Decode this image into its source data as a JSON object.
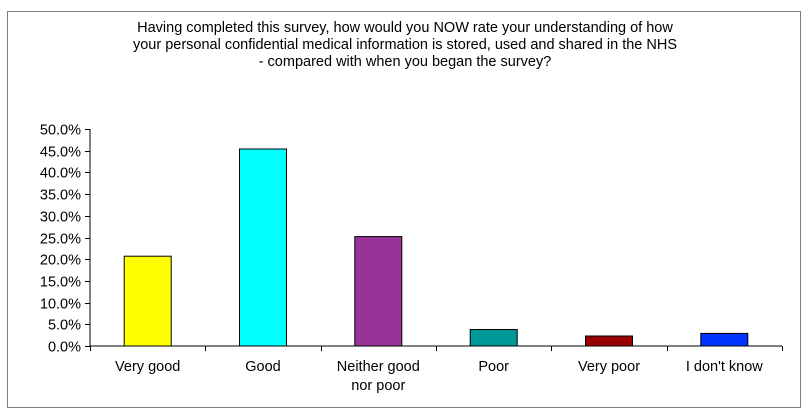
{
  "chart_data": {
    "type": "bar",
    "title_lines": [
      "Having completed this survey, how would you NOW rate your understanding of how",
      "your personal confidential medical information is stored, used and shared in the NHS",
      "- compared with when you began the survey?"
    ],
    "categories": [
      [
        "Very good"
      ],
      [
        "Good"
      ],
      [
        "Neither good",
        "nor poor"
      ],
      [
        "Poor"
      ],
      [
        "Very poor"
      ],
      [
        "I don't know"
      ]
    ],
    "values": [
      20.7,
      45.4,
      25.2,
      3.8,
      2.3,
      2.9
    ],
    "colors": [
      "#ffff00",
      "#00ffff",
      "#993399",
      "#009999",
      "#990000",
      "#0033ff"
    ],
    "ylim": [
      0,
      50
    ],
    "ytick_step": 5,
    "ytick_format": "percent-1dp",
    "grid": false,
    "legend": false
  }
}
